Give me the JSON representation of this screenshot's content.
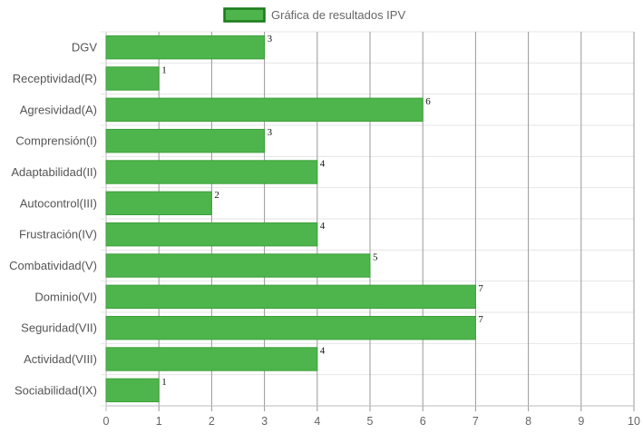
{
  "chart_data": {
    "type": "bar",
    "orientation": "horizontal",
    "legend": {
      "label": "Gráfica de resultados IPV",
      "placement": "top-center"
    },
    "categories": [
      "DGV",
      "Receptividad(R)",
      "Agresividad(A)",
      "Comprensión(I)",
      "Adaptabilidad(II)",
      "Autocontrol(III)",
      "Frustración(IV)",
      "Combatividad(V)",
      "Dominio(VI)",
      "Seguridad(VII)",
      "Actividad(VIII)",
      "Sociabilidad(IX)"
    ],
    "series": [
      {
        "name": "Gráfica de resultados IPV",
        "values": [
          3,
          1,
          6,
          3,
          4,
          2,
          4,
          5,
          7,
          7,
          4,
          1
        ]
      }
    ],
    "xlim": [
      0,
      10
    ],
    "x_ticks": [
      "0",
      "1",
      "2",
      "3",
      "4",
      "5",
      "6",
      "7",
      "8",
      "9",
      "10"
    ],
    "grid": true,
    "data_labels": true,
    "colors": {
      "bar_fill": "#4db54b",
      "bar_border": "#3f9f3d",
      "legend_border": "#1a7a1a",
      "grid": "#e6e6e6",
      "grid_vertical": "#999999"
    }
  }
}
